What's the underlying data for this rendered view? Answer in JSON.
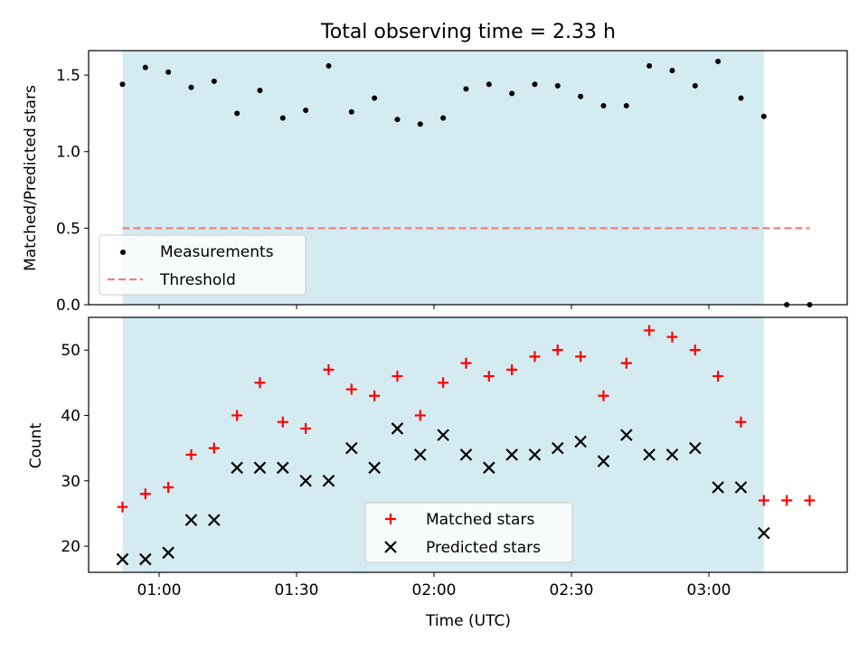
{
  "chart_data": [
    {
      "type": "scatter",
      "title": "Total observing time = 2.33 h",
      "ylabel": "Matched/Predicted stars",
      "ylim": [
        0,
        1.66
      ],
      "yticks": [
        0.0,
        0.5,
        1.0,
        1.5
      ],
      "ytick_labels": [
        "0.0",
        "0.5",
        "1.0",
        "1.5"
      ],
      "shaded_span": [
        "00:52",
        "03:12"
      ],
      "shade_color": "#d3ebf1",
      "grid": false,
      "legend_position": "lower-left",
      "series": [
        {
          "name": "Measurements",
          "marker": "dot",
          "color": "#000000",
          "x": [
            "00:52",
            "00:57",
            "01:02",
            "01:07",
            "01:12",
            "01:17",
            "01:22",
            "01:27",
            "01:32",
            "01:37",
            "01:42",
            "01:47",
            "01:52",
            "01:57",
            "02:02",
            "02:07",
            "02:12",
            "02:17",
            "02:22",
            "02:27",
            "02:32",
            "02:37",
            "02:42",
            "02:47",
            "02:52",
            "02:57",
            "03:02",
            "03:07",
            "03:12",
            "03:17",
            "03:22"
          ],
          "y": [
            1.44,
            1.55,
            1.52,
            1.42,
            1.46,
            1.25,
            1.4,
            1.22,
            1.27,
            1.56,
            1.26,
            1.35,
            1.21,
            1.18,
            1.22,
            1.41,
            1.44,
            1.38,
            1.44,
            1.43,
            1.36,
            1.3,
            1.3,
            1.56,
            1.53,
            1.43,
            1.59,
            1.35,
            1.23,
            0.0,
            0.0
          ]
        },
        {
          "name": "Threshold",
          "style": "dashed",
          "color": "#f08080",
          "x": [
            "00:52",
            "03:22"
          ],
          "y": [
            0.5,
            0.5
          ]
        }
      ]
    },
    {
      "type": "scatter",
      "xlabel": "Time (UTC)",
      "ylabel": "Count",
      "ylim": [
        16,
        55
      ],
      "yticks": [
        20,
        30,
        40,
        50
      ],
      "ytick_labels": [
        "20",
        "30",
        "40",
        "50"
      ],
      "xticks": [
        "01:00",
        "01:30",
        "02:00",
        "02:30",
        "03:00"
      ],
      "shaded_span": [
        "00:52",
        "03:12"
      ],
      "shade_color": "#d3ebf1",
      "grid": false,
      "legend_position": "lower-center",
      "series": [
        {
          "name": "Matched stars",
          "marker": "plus",
          "color": "#ff0000",
          "x": [
            "00:52",
            "00:57",
            "01:02",
            "01:07",
            "01:12",
            "01:17",
            "01:22",
            "01:27",
            "01:32",
            "01:37",
            "01:42",
            "01:47",
            "01:52",
            "01:57",
            "02:02",
            "02:07",
            "02:12",
            "02:17",
            "02:22",
            "02:27",
            "02:32",
            "02:37",
            "02:42",
            "02:47",
            "02:52",
            "02:57",
            "03:02",
            "03:07",
            "03:12",
            "03:17",
            "03:22"
          ],
          "y": [
            26,
            28,
            29,
            34,
            35,
            40,
            45,
            39,
            38,
            47,
            44,
            43,
            46,
            40,
            45,
            48,
            46,
            47,
            49,
            50,
            49,
            43,
            48,
            53,
            52,
            50,
            46,
            39,
            27,
            27,
            27
          ]
        },
        {
          "name": "Predicted stars",
          "marker": "x",
          "color": "#000000",
          "x": [
            "00:52",
            "00:57",
            "01:02",
            "01:07",
            "01:12",
            "01:17",
            "01:22",
            "01:27",
            "01:32",
            "01:37",
            "01:42",
            "01:47",
            "01:52",
            "01:57",
            "02:02",
            "02:07",
            "02:12",
            "02:17",
            "02:22",
            "02:27",
            "02:32",
            "02:37",
            "02:42",
            "02:47",
            "02:52",
            "02:57",
            "03:02",
            "03:07",
            "03:12"
          ],
          "y": [
            18,
            18,
            19,
            24,
            24,
            32,
            32,
            32,
            30,
            30,
            35,
            32,
            38,
            34,
            37,
            34,
            32,
            34,
            34,
            35,
            36,
            33,
            37,
            34,
            34,
            35,
            29,
            29,
            22
          ]
        }
      ]
    }
  ]
}
